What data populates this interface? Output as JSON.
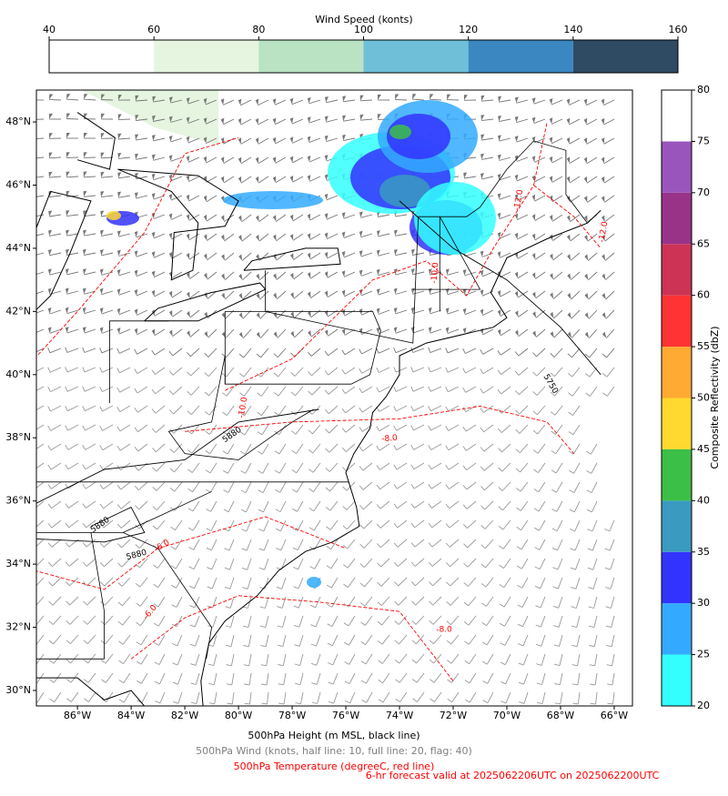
{
  "colorbar_top": {
    "title": "Wind Speed (konts)",
    "ticks": [
      40,
      60,
      80,
      100,
      120,
      140,
      160
    ],
    "colors": [
      "#ffffff",
      "#e5f5e0",
      "#b9e3c3",
      "#6fbfd9",
      "#3a87c1",
      "#2f4a63"
    ]
  },
  "colorbar_right": {
    "title": "Composite Reflectivity (dbZ)",
    "ticks": [
      20,
      25,
      30,
      35,
      40,
      45,
      50,
      55,
      60,
      65,
      70,
      75,
      80
    ],
    "colors": [
      "#33ffff",
      "#33aaff",
      "#3333ff",
      "#3a9abf",
      "#3cbf46",
      "#ffd92f",
      "#ffaa33",
      "#ff3333",
      "#cc3355",
      "#993388",
      "#9955bb",
      "#ffffff"
    ]
  },
  "map": {
    "xlim": [
      -87.53,
      -65.32
    ],
    "ylim": [
      29.51,
      49.01
    ],
    "xticks": [
      {
        "value": -86,
        "label": "86°W"
      },
      {
        "value": -84,
        "label": "84°W"
      },
      {
        "value": -82,
        "label": "82°W"
      },
      {
        "value": -80,
        "label": "80°W"
      },
      {
        "value": -78,
        "label": "78°W"
      },
      {
        "value": -76,
        "label": "76°W"
      },
      {
        "value": -74,
        "label": "74°W"
      },
      {
        "value": -72,
        "label": "72°W"
      },
      {
        "value": -70,
        "label": "70°W"
      },
      {
        "value": -68,
        "label": "68°W"
      },
      {
        "value": -66,
        "label": "66°W"
      }
    ],
    "yticks": [
      {
        "value": 30,
        "label": "30°N"
      },
      {
        "value": 32,
        "label": "32°N"
      },
      {
        "value": 34,
        "label": "34°N"
      },
      {
        "value": 36,
        "label": "36°N"
      },
      {
        "value": 38,
        "label": "38°N"
      },
      {
        "value": 40,
        "label": "40°N"
      },
      {
        "value": 42,
        "label": "42°N"
      },
      {
        "value": 44,
        "label": "44°N"
      },
      {
        "value": 46,
        "label": "46°N"
      },
      {
        "value": 48,
        "label": "48°N"
      }
    ],
    "height_contour_labels": [
      "5750",
      "5880",
      "5880",
      "5880"
    ],
    "temperature_contour_labels": [
      "-12.0",
      "-12.0",
      "-10.0",
      "-10.0",
      "-8.0",
      "-8.0",
      "-6.0",
      "-6.0"
    ]
  },
  "captions": [
    "500hPa Height (m MSL, black line)",
    "500hPa Wind (knots, half line: 10, full line: 20, flag: 40)",
    "500hPa Temperature (degreeC, red line)"
  ],
  "valid_time": "6-hr forecast valid at 2025062206UTC on 2025062200UTC"
}
